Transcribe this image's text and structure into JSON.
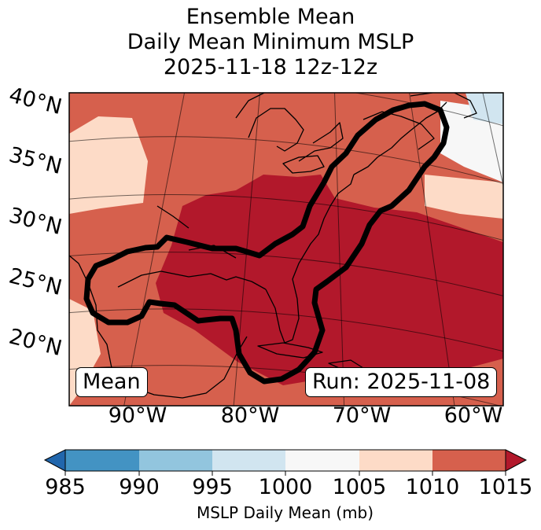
{
  "title": {
    "line1": "Ensemble Mean",
    "line2": "Daily Mean Minimum MSLP",
    "line3": "2025-11-18 12z-12z"
  },
  "map": {
    "lat_labels": [
      "40°N",
      "35°N",
      "30°N",
      "25°N",
      "20°N"
    ],
    "lon_labels": [
      "90°W",
      "80°W",
      "70°W",
      "60°W"
    ],
    "mean_label": "Mean",
    "run_label": "Run: 2025-11-08",
    "contour_level_mb": 1015
  },
  "colorbar": {
    "ticks": [
      "985",
      "990",
      "995",
      "1000",
      "1005",
      "1010",
      "1015"
    ],
    "label": "MSLP Daily Mean (mb)",
    "colors": [
      "#2166ac",
      "#4393c3",
      "#92c5de",
      "#d1e5f0",
      "#f7f7f7",
      "#fddbc7",
      "#d6604d",
      "#b2182b"
    ]
  }
}
